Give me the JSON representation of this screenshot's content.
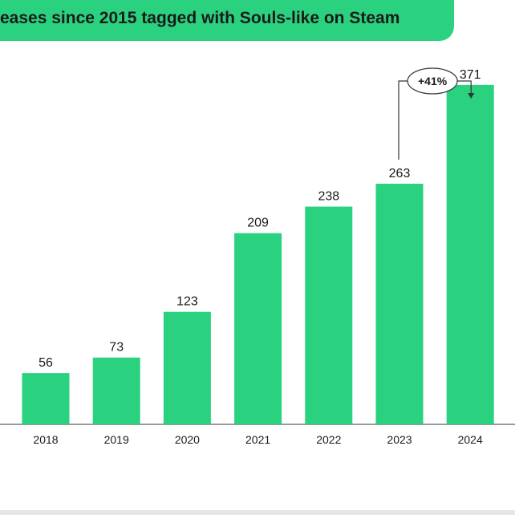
{
  "chart_data": {
    "type": "bar",
    "title": "eases since 2015 tagged with Souls-like on Steam",
    "categories": [
      "2018",
      "2019",
      "2020",
      "2021",
      "2022",
      "2023",
      "2024"
    ],
    "values": [
      56,
      73,
      123,
      209,
      238,
      263,
      371
    ],
    "value_labels": [
      "56",
      "73",
      "123",
      "209",
      "238",
      "263",
      "371"
    ],
    "ylim": [
      0,
      420
    ],
    "xlabel": "",
    "ylabel": "",
    "grid": false,
    "annotation": {
      "text": "+41%",
      "from_category": "2023",
      "to_category": "2024"
    },
    "colors": {
      "bar": "#2ad17e",
      "banner": "#2ad17e",
      "text": "#1a1a1a",
      "axis": "#333333"
    }
  }
}
